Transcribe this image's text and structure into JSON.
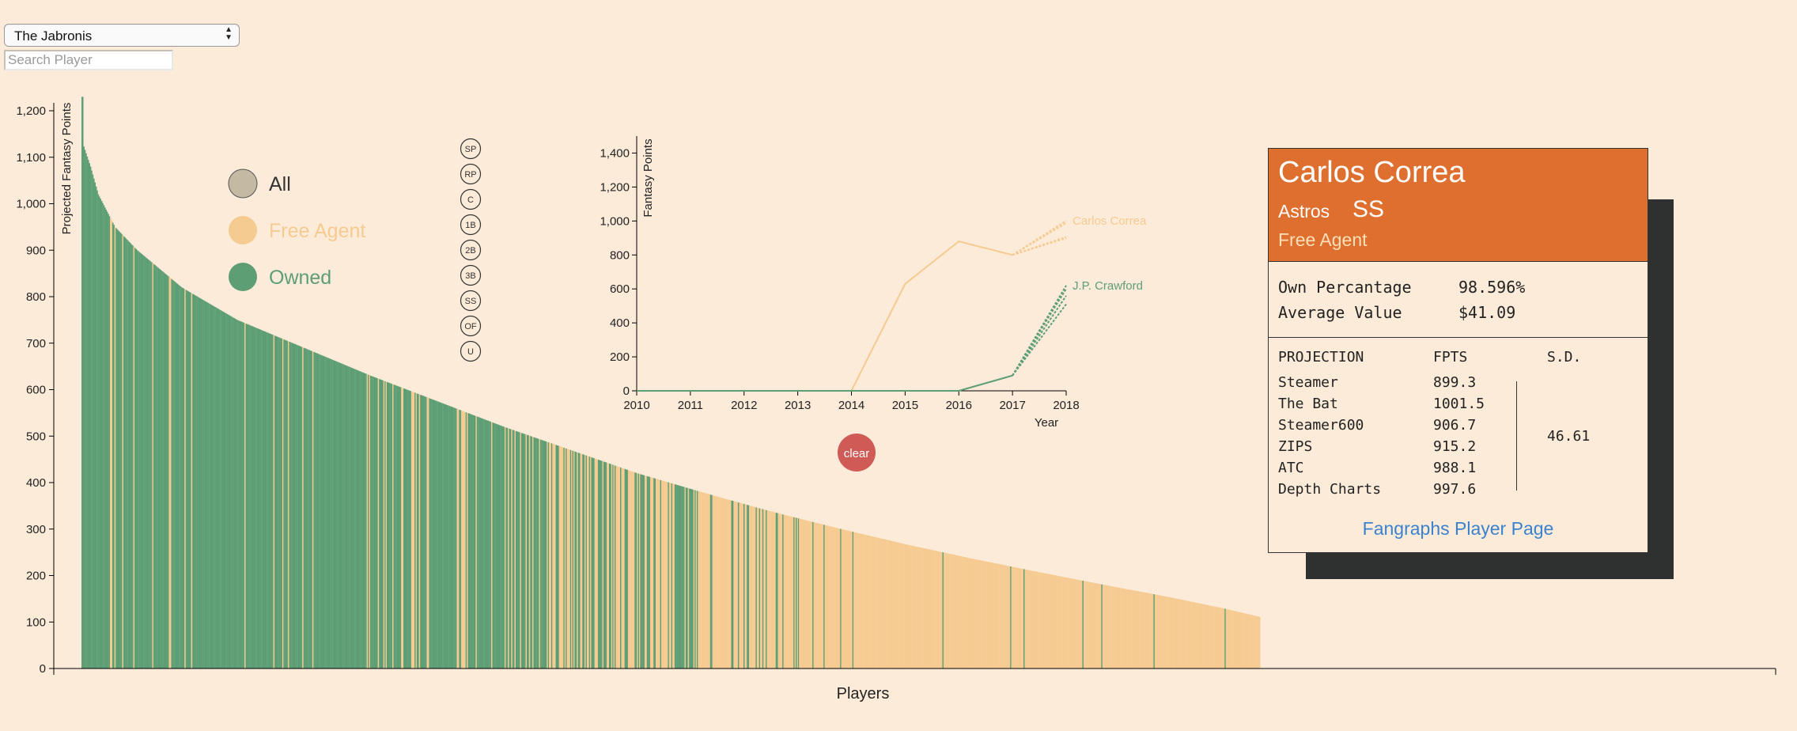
{
  "team_select": {
    "value": "The Jabronis"
  },
  "search": {
    "placeholder": "Search Player"
  },
  "legend": [
    {
      "label": "All",
      "color": "#c4b9a3",
      "text_color": "#333333"
    },
    {
      "label": "Free Agent",
      "color": "#f6cb92",
      "text_color": "#f6cb92"
    },
    {
      "label": "Owned",
      "color": "#5d9e74",
      "text_color": "#5d9e74"
    }
  ],
  "positions": [
    "SP",
    "RP",
    "C",
    "1B",
    "2B",
    "3B",
    "SS",
    "OF",
    "U"
  ],
  "colors": {
    "free_agent": "#f6cb92",
    "owned": "#5d9e74",
    "header": "#df6f2e",
    "link": "#3a82d0",
    "clear": "#cf5a56"
  },
  "history_chart": {
    "clear_label": "clear"
  },
  "chart_data": [
    {
      "type": "bar",
      "title": "",
      "xlabel": "Players",
      "ylabel": "Projected Fantasy Points",
      "ylim": [
        0,
        1200
      ],
      "yticks": [
        "0",
        "100",
        "200",
        "300",
        "400",
        "500",
        "600",
        "700",
        "800",
        "900",
        "1,000",
        "1,100",
        "1,200"
      ],
      "player_count": 1060,
      "descending_value_curve": [
        [
          0,
          1230
        ],
        [
          1,
          1130
        ],
        [
          8,
          1080
        ],
        [
          15,
          1020
        ],
        [
          30,
          950
        ],
        [
          50,
          900
        ],
        [
          90,
          820
        ],
        [
          140,
          750
        ],
        [
          200,
          690
        ],
        [
          260,
          630
        ],
        [
          320,
          575
        ],
        [
          380,
          520
        ],
        [
          440,
          470
        ],
        [
          500,
          420
        ],
        [
          560,
          378
        ],
        [
          620,
          338
        ],
        [
          680,
          302
        ],
        [
          740,
          268
        ],
        [
          800,
          237
        ],
        [
          860,
          208
        ],
        [
          920,
          180
        ],
        [
          980,
          153
        ],
        [
          1030,
          128
        ],
        [
          1062,
          110
        ],
        [
          1069,
          70
        ],
        [
          1073,
          20
        ],
        [
          1078,
          0
        ]
      ],
      "series": [
        {
          "name": "Owned",
          "color": "#5d9e74"
        },
        {
          "name": "Free Agent",
          "color": "#f6cb92"
        }
      ]
    },
    {
      "type": "line",
      "title": "",
      "xlabel": "Year",
      "ylabel": "Fantasy Points",
      "x": [
        2010,
        2011,
        2012,
        2013,
        2014,
        2015,
        2016,
        2017,
        2018
      ],
      "xlim": [
        2010,
        2018
      ],
      "ylim": [
        0,
        1500
      ],
      "yticks": [
        "0",
        "200",
        "400",
        "600",
        "800",
        "1,000",
        "1,200",
        "1,400"
      ],
      "series": [
        {
          "name": "Carlos Correa",
          "color": "#f6cb92",
          "actual": [
            [
              2010,
              0
            ],
            [
              2011,
              0
            ],
            [
              2012,
              0
            ],
            [
              2013,
              0
            ],
            [
              2014,
              0
            ],
            [
              2015,
              630
            ],
            [
              2016,
              880
            ],
            [
              2017,
              800
            ]
          ],
          "projections": [
            1001.5,
            988.1,
            899.3,
            906.7
          ]
        },
        {
          "name": "J.P. Crawford",
          "color": "#5d9e74",
          "actual": [
            [
              2010,
              0
            ],
            [
              2011,
              0
            ],
            [
              2012,
              0
            ],
            [
              2013,
              0
            ],
            [
              2014,
              0
            ],
            [
              2015,
              0
            ],
            [
              2016,
              0
            ],
            [
              2017,
              90
            ]
          ],
          "projections": [
            620,
            600,
            560,
            510
          ]
        }
      ]
    }
  ],
  "player_card": {
    "name": "Carlos Correa",
    "team": "Astros",
    "position": "SS",
    "status": "Free Agent",
    "own_label": "Own Percantage",
    "own_value": "98.596%",
    "avg_label": "Average Value",
    "avg_value": "$41.09",
    "projection_header": "PROJECTION",
    "fpts_header": "FPTS",
    "sd_header": "S.D.",
    "projections": [
      {
        "source": "Steamer",
        "fpts": "899.3"
      },
      {
        "source": "The Bat",
        "fpts": "1001.5"
      },
      {
        "source": "Steamer600",
        "fpts": "906.7"
      },
      {
        "source": "ZIPS",
        "fpts": "915.2"
      },
      {
        "source": "ATC",
        "fpts": "988.1"
      },
      {
        "source": "Depth Charts",
        "fpts": "997.6"
      }
    ],
    "sd_value": "46.61",
    "link_label": "Fangraphs Player Page"
  }
}
